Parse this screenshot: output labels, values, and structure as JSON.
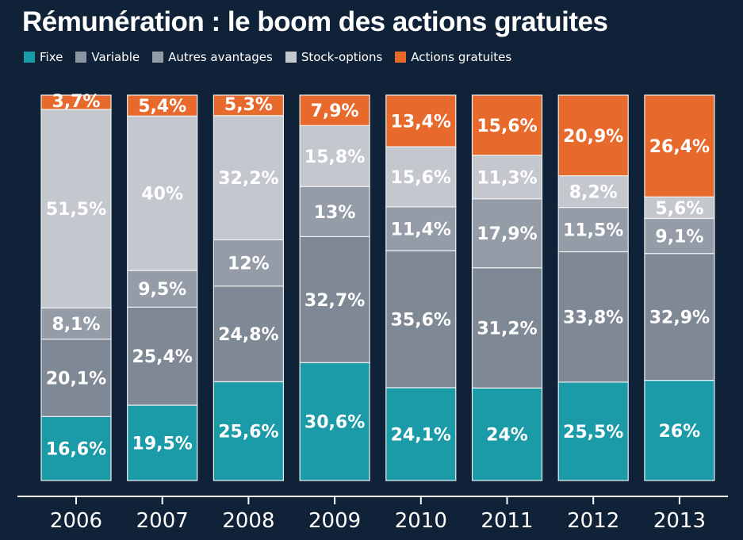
{
  "chart_data": {
    "type": "bar",
    "stacked": true,
    "title": "Rémunération : le boom des actions gratuites",
    "categories": [
      "2006",
      "2007",
      "2008",
      "2009",
      "2010",
      "2011",
      "2012",
      "2013"
    ],
    "series": [
      {
        "name": "Fixe",
        "color": "#1b9aa8",
        "values": [
          16.6,
          19.5,
          25.6,
          30.6,
          24.1,
          24,
          25.5,
          26
        ],
        "labels": [
          "16,6%",
          "19,5%",
          "25,6%",
          "30,6%",
          "24,1%",
          "24%",
          "25,5%",
          "26%"
        ]
      },
      {
        "name": "Variable",
        "color": "#7f8895",
        "values": [
          20.1,
          25.4,
          24.8,
          32.7,
          35.6,
          31.2,
          33.8,
          32.9
        ],
        "labels": [
          "20,1%",
          "25,4%",
          "24,8%",
          "32,7%",
          "35,6%",
          "31,2%",
          "33,8%",
          "32,9%"
        ]
      },
      {
        "name": "Autres avantages",
        "color": "#949ca8",
        "values": [
          8.1,
          9.5,
          12,
          13,
          11.4,
          17.9,
          11.5,
          9.1
        ],
        "labels": [
          "8,1%",
          "9,5%",
          "12%",
          "13%",
          "11,4%",
          "17,9%",
          "11,5%",
          "9,1%"
        ]
      },
      {
        "name": "Stock-options",
        "color": "#c4c7ce",
        "values": [
          51.5,
          40,
          32.2,
          15.8,
          15.6,
          11.3,
          8.2,
          5.6
        ],
        "labels": [
          "51,5%",
          "40%",
          "32,2%",
          "15,8%",
          "15,6%",
          "11,3%",
          "8,2%",
          "5,6%"
        ]
      },
      {
        "name": "Actions gratuites",
        "color": "#e8692c",
        "values": [
          3.7,
          5.4,
          5.3,
          7.9,
          13.4,
          15.6,
          20.9,
          26.4
        ],
        "labels": [
          "3,7%",
          "5,4%",
          "5,3%",
          "7,9%",
          "13,4%",
          "15,6%",
          "20,9%",
          "26,4%"
        ]
      }
    ],
    "legend_position": "top-left",
    "grid": false
  }
}
